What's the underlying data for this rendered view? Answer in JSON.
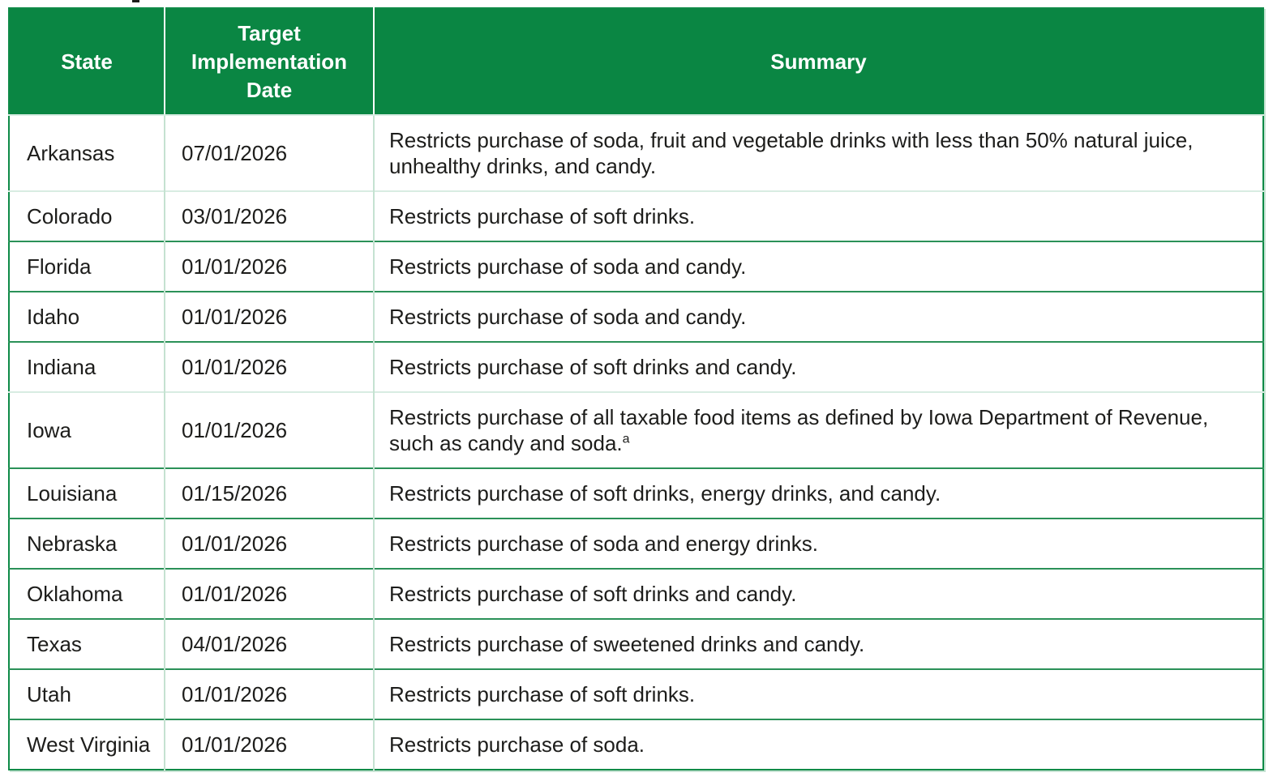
{
  "colors": {
    "header_background": "#0A8643",
    "header_text": "#FFFFFF",
    "row_separator_green": "#2B9158",
    "row_separator_light": "#D8ECE2",
    "column_separator_light": "#C5E2D1",
    "body_text": "#1D1D1B"
  },
  "table": {
    "columns": [
      "State",
      "Target Implementation Date",
      "Summary"
    ],
    "rows": [
      {
        "state": "Arkansas",
        "date": "07/01/2026",
        "summary": "Restricts purchase of soda, fruit and vegetable drinks with less than 50% natural juice, unhealthy drinks, and candy."
      },
      {
        "state": "Colorado",
        "date": "03/01/2026",
        "summary": "Restricts purchase of soft drinks."
      },
      {
        "state": "Florida",
        "date": "01/01/2026",
        "summary": "Restricts purchase of soda and candy."
      },
      {
        "state": "Idaho",
        "date": "01/01/2026",
        "summary": "Restricts purchase of soda and candy."
      },
      {
        "state": "Indiana",
        "date": "01/01/2026",
        "summary": "Restricts purchase of soft drinks and candy."
      },
      {
        "state": "Iowa",
        "date": "01/01/2026",
        "summary": "Restricts purchase of all taxable food items as defined by Iowa Department of Revenue, such as candy and soda.",
        "footnote_marker": "a"
      },
      {
        "state": "Louisiana",
        "date": "01/15/2026",
        "summary": "Restricts purchase of soft drinks, energy drinks, and candy."
      },
      {
        "state": "Nebraska",
        "date": "01/01/2026",
        "summary": "Restricts purchase of soda and energy drinks."
      },
      {
        "state": "Oklahoma",
        "date": "01/01/2026",
        "summary": "Restricts purchase of soft drinks and candy."
      },
      {
        "state": "Texas",
        "date": "04/01/2026",
        "summary": "Restricts purchase of sweetened drinks and candy."
      },
      {
        "state": "Utah",
        "date": "01/01/2026",
        "summary": "Restricts purchase of soft drinks."
      },
      {
        "state": "West Virginia",
        "date": "01/01/2026",
        "summary": "Restricts purchase of soda."
      }
    ]
  }
}
